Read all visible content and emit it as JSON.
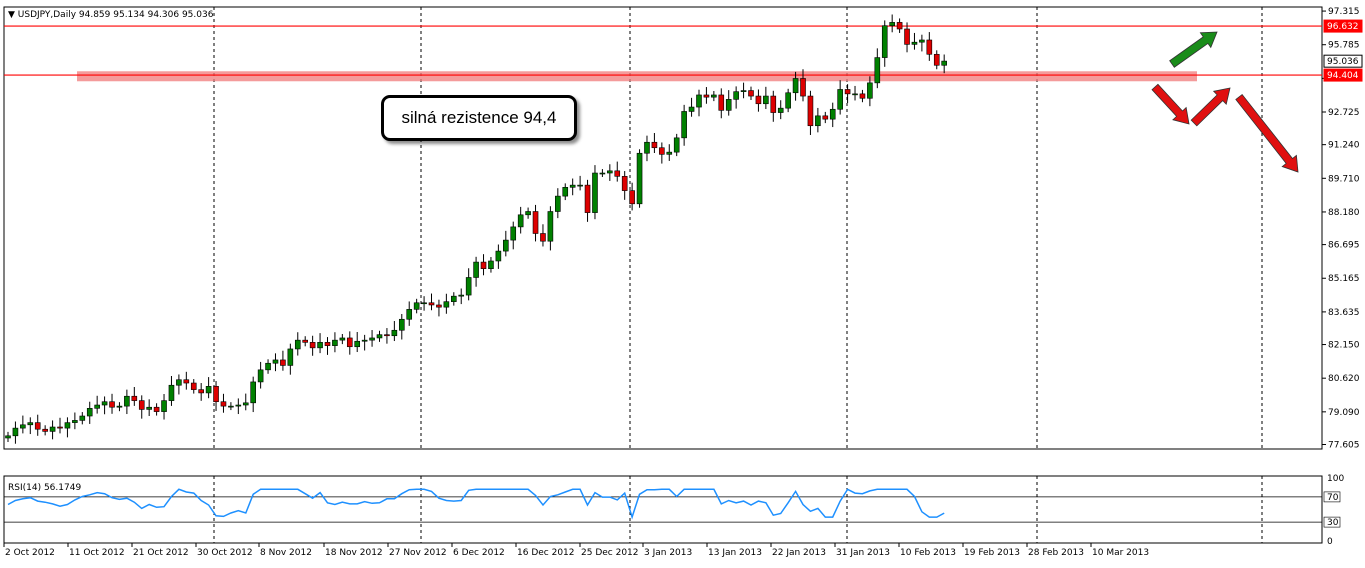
{
  "chart_data": {
    "type": "candlestick",
    "title": "USDJPY,Daily",
    "ohlc_readout": [
      "94.859",
      "95.134",
      "94.306",
      "95.036"
    ],
    "price_ticks": [
      "97.315",
      "95.785",
      "94.255",
      "92.725",
      "91.240",
      "89.710",
      "88.180",
      "86.695",
      "85.165",
      "83.635",
      "82.150",
      "80.620",
      "79.090",
      "77.605"
    ],
    "ylim": [
      77.4,
      97.5
    ],
    "x_tick_labels": [
      "2 Oct 2012",
      "11 Oct 2012",
      "21 Oct 2012",
      "30 Oct 2012",
      "8 Nov 2012",
      "18 Nov 2012",
      "27 Nov 2012",
      "6 Dec 2012",
      "16 Dec 2012",
      "25 Dec 2012",
      "3 Jan 2013",
      "13 Jan 2013",
      "22 Jan 2013",
      "31 Jan 2013",
      "10 Feb 2013",
      "19 Feb 2013",
      "28 Feb 2013",
      "10 Mar 2013"
    ],
    "up_color": "#008000",
    "down_color": "#dd0000",
    "series_close": [
      78.0,
      78.35,
      78.5,
      78.6,
      78.3,
      78.2,
      78.4,
      78.35,
      78.6,
      78.7,
      78.9,
      79.25,
      79.4,
      79.55,
      79.3,
      79.35,
      79.8,
      79.6,
      79.2,
      79.3,
      79.1,
      79.6,
      80.3,
      80.55,
      80.4,
      80.1,
      79.95,
      80.25,
      79.55,
      79.35,
      79.35,
      79.4,
      79.5,
      80.45,
      81.0,
      81.3,
      81.45,
      81.2,
      81.95,
      82.35,
      82.25,
      82.0,
      82.25,
      82.1,
      82.35,
      82.45,
      82.05,
      82.3,
      82.35,
      82.45,
      82.6,
      82.55,
      82.8,
      83.3,
      83.75,
      84.05,
      84.05,
      83.95,
      83.85,
      84.1,
      84.35,
      84.4,
      85.2,
      85.9,
      85.6,
      85.95,
      86.4,
      86.9,
      87.5,
      88.05,
      88.2,
      87.2,
      86.85,
      88.2,
      88.9,
      89.3,
      89.4,
      89.4,
      88.15,
      89.95,
      89.95,
      90.05,
      89.8,
      89.15,
      88.55,
      90.85,
      91.35,
      91.1,
      90.8,
      90.9,
      91.55,
      92.75,
      92.95,
      93.5,
      93.4,
      93.5,
      92.8,
      93.3,
      93.65,
      93.7,
      93.45,
      93.1,
      93.45,
      92.7,
      92.9,
      93.6,
      94.25,
      93.45,
      92.1,
      92.55,
      92.4,
      92.85,
      93.75,
      93.55,
      93.55,
      93.35,
      94.05,
      95.2,
      96.65,
      96.8,
      96.5,
      95.8,
      95.9,
      96.0,
      95.35,
      94.85,
      95.04
    ],
    "resistance_levels": [
      "96.632",
      "94.404"
    ],
    "current_price_label": "95.036",
    "resistance_zone_level": 94.35,
    "annotation": "silná rezistence 94,4",
    "rsi": {
      "label": "RSI(14) 56.1749",
      "ticks": [
        "100",
        "70",
        "30",
        "0"
      ],
      "ylim": [
        0,
        100
      ],
      "levels": [
        70,
        30
      ],
      "color": "#1e90ff"
    }
  }
}
